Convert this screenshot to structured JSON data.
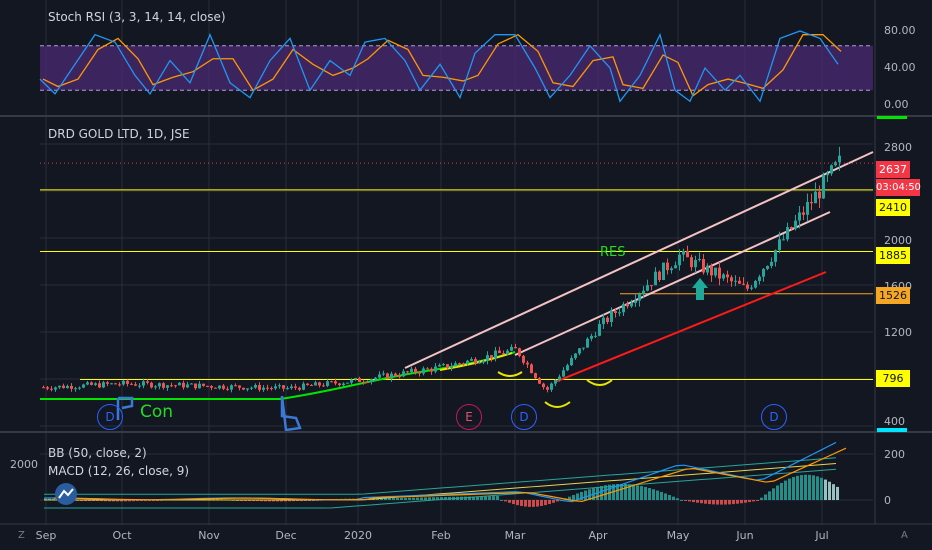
{
  "stoch_rsi": {
    "label": "Stoch RSI (3, 3, 14, 14, close)",
    "ticks": [
      "80.00",
      "40.00",
      "0.00"
    ],
    "band": [
      20,
      80
    ]
  },
  "main": {
    "title": "DRD GOLD LTD, 1D, JSE",
    "ticks": [
      "2800",
      "2400",
      "2000",
      "1600",
      "1200",
      "800",
      "400"
    ],
    "price_tags": [
      {
        "value": "2637",
        "bg": "#f23645",
        "fg": "#ffffff"
      },
      {
        "value": "03:04:50",
        "bg": "#f23645",
        "fg": "#ffffff"
      },
      {
        "value": "2410",
        "bg": "#ffff00",
        "fg": "#131722"
      },
      {
        "value": "1885",
        "bg": "#ffff00",
        "fg": "#131722"
      },
      {
        "value": "1526",
        "bg": "#f5a623",
        "fg": "#131722"
      },
      {
        "value": "796",
        "bg": "#ffff00",
        "fg": "#131722"
      }
    ],
    "annotations": {
      "res": "RES",
      "con": "Con"
    },
    "markers": [
      {
        "type": "D",
        "kind": "d"
      },
      {
        "type": "E",
        "kind": "e"
      },
      {
        "type": "D",
        "kind": "d"
      },
      {
        "type": "D",
        "kind": "d"
      }
    ]
  },
  "lower": {
    "bb_label": "BB (50, close, 2)",
    "macd_label": "MACD (12, 26, close, 9)",
    "left_value": "2000",
    "ticks": [
      "200",
      "0"
    ]
  },
  "x_axis": [
    "Sep",
    "Oct",
    "Nov",
    "Dec",
    "2020",
    "Feb",
    "Mar",
    "Apr",
    "May",
    "Jun",
    "Jul"
  ],
  "corner": {
    "left": "Z",
    "right": "A"
  },
  "colors": {
    "up": "#26a69a",
    "down": "#ef5350",
    "yellow": "#ffff00",
    "orange": "#f5a623",
    "green_line": "#00e600",
    "pink": "#f4c2c2",
    "red": "#ff1a1a",
    "blue_k": "#2196f3",
    "orange_d": "#ff9800",
    "band_fill": "#4b2a73"
  },
  "chart_data": {
    "type": "candlestick",
    "title": "DRD GOLD LTD, 1D, JSE",
    "y_axis_ticks": [
      400,
      800,
      1200,
      1600,
      2000,
      2400,
      2800
    ],
    "horizontal_levels": [
      {
        "value": 2410,
        "color": "yellow"
      },
      {
        "value": 1885,
        "color": "yellow"
      },
      {
        "value": 1526,
        "color": "orange"
      },
      {
        "value": 796,
        "color": "yellow"
      }
    ],
    "last_price": 2637,
    "x_ticks": [
      "Sep",
      "Oct",
      "Nov",
      "Dec",
      "2020",
      "Feb",
      "Mar",
      "Apr",
      "May",
      "Jun",
      "Jul"
    ],
    "approx_close_path": [
      {
        "date": "Sep",
        "value": 730
      },
      {
        "date": "Oct",
        "value": 760
      },
      {
        "date": "Nov",
        "value": 740
      },
      {
        "date": "Dec",
        "value": 720
      },
      {
        "date": "2020",
        "value": 790
      },
      {
        "date": "Feb",
        "value": 900
      },
      {
        "date": "Mar",
        "value": 1050
      },
      {
        "date": "Mar (dip)",
        "value": 700
      },
      {
        "date": "Apr",
        "value": 1250
      },
      {
        "date": "May",
        "value": 1850
      },
      {
        "date": "Jun",
        "value": 1560
      },
      {
        "date": "Jul",
        "value": 2637
      }
    ],
    "indicators": [
      "Stoch RSI (3, 3, 14, 14, close)",
      "BB (50, close, 2)",
      "MACD (12, 26, close, 9)"
    ]
  }
}
